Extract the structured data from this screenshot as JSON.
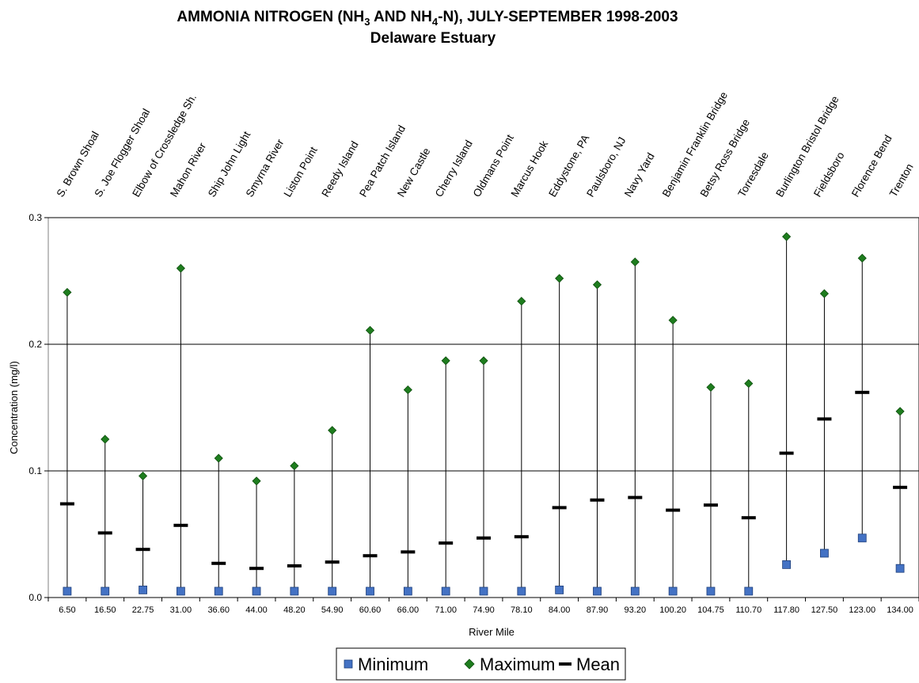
{
  "chart_data": {
    "type": "scatter",
    "title_line1_pre": "AMMONIA NITROGEN (NH",
    "title_sub1": "3",
    "title_line1_mid": " AND NH",
    "title_sub2": "4",
    "title_line1_post": "-N), JULY-SEPTEMBER 1998-2003",
    "subtitle": "Delaware Estuary",
    "xlabel": "River Mile",
    "ylabel": "Concentration (mg/l)",
    "ylim": [
      0,
      0.3
    ],
    "yticks": [
      "0.0",
      "0.1",
      "0.2",
      "0.3"
    ],
    "grid": "horizontal",
    "legend_position": "bottom",
    "categories": [
      "6.50",
      "16.50",
      "22.75",
      "31.00",
      "36.60",
      "44.00",
      "48.20",
      "54.90",
      "60.60",
      "66.00",
      "71.00",
      "74.90",
      "78.10",
      "84.00",
      "87.90",
      "93.20",
      "100.20",
      "104.75",
      "110.70",
      "117.80",
      "127.50",
      "123.00",
      "134.00"
    ],
    "stations": [
      "S. Brown Shoal",
      "S. Joe Flogger Shoal",
      "Elbow of Crossledge Sh.",
      "Mahon River",
      "Ship John Light",
      "Smyrna River",
      "Liston Point",
      "Reedy Island",
      "Pea Patch Island",
      "New Castle",
      "Cherry Island",
      "Oldmans Point",
      "Marcus Hook",
      "Eddystone, PA",
      "Paulsboro, NJ",
      "Navy Yard",
      "Benjamin Franklin Bridge",
      "Betsy Ross Bridge",
      "Torresdale",
      "Burlington Bristol Bridge",
      "Fieldsboro",
      "Florence Bend",
      "Trenton"
    ],
    "series": [
      {
        "name": "Minimum",
        "color": "#4472c4",
        "marker": "square",
        "values": [
          0.005,
          0.005,
          0.006,
          0.005,
          0.005,
          0.005,
          0.005,
          0.005,
          0.005,
          0.005,
          0.005,
          0.005,
          0.005,
          0.006,
          0.005,
          0.005,
          0.005,
          0.005,
          0.005,
          0.026,
          0.035,
          0.047,
          0.023
        ]
      },
      {
        "name": "Maximum",
        "color": "#1e7d1e",
        "marker": "diamond",
        "values": [
          0.241,
          0.125,
          0.096,
          0.26,
          0.11,
          0.092,
          0.104,
          0.132,
          0.211,
          0.164,
          0.187,
          0.187,
          0.234,
          0.252,
          0.247,
          0.265,
          0.219,
          0.166,
          0.169,
          0.285,
          0.24,
          0.268,
          0.147
        ]
      },
      {
        "name": "Mean",
        "color": "#000000",
        "marker": "dash",
        "values": [
          0.074,
          0.051,
          0.038,
          0.057,
          0.027,
          0.023,
          0.025,
          0.028,
          0.033,
          0.036,
          0.043,
          0.047,
          0.048,
          0.071,
          0.077,
          0.079,
          0.069,
          0.073,
          0.063,
          0.114,
          0.141,
          0.162,
          0.087
        ]
      }
    ]
  }
}
